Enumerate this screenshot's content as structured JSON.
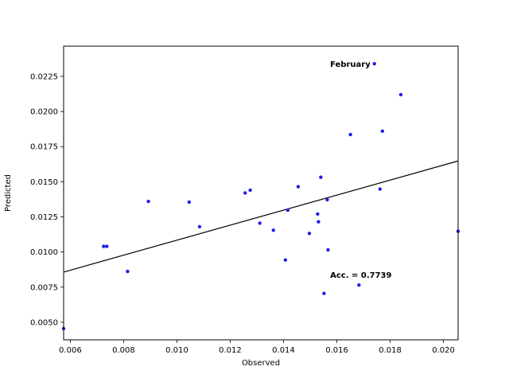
{
  "chart_data": {
    "type": "scatter",
    "title": "",
    "xlabel": "Observed",
    "ylabel": "Predicted",
    "xlim": [
      0.00575,
      0.02055
    ],
    "ylim": [
      0.00375,
      0.02465
    ],
    "x_ticks": [
      0.006,
      0.008,
      0.01,
      0.012,
      0.014,
      0.016,
      0.018,
      0.02
    ],
    "x_tick_labels": [
      "0.006",
      "0.008",
      "0.010",
      "0.012",
      "0.014",
      "0.016",
      "0.018",
      "0.020"
    ],
    "y_ticks": [
      0.005,
      0.0075,
      0.01,
      0.0125,
      0.015,
      0.0175,
      0.02,
      0.0225
    ],
    "y_tick_labels": [
      "0.0050",
      "0.0075",
      "0.0100",
      "0.0125",
      "0.0150",
      "0.0175",
      "0.0200",
      "0.0225"
    ],
    "points": [
      {
        "x": 0.00575,
        "y": 0.00455
      },
      {
        "x": 0.00725,
        "y": 0.0104
      },
      {
        "x": 0.00737,
        "y": 0.0104
      },
      {
        "x": 0.00815,
        "y": 0.00862
      },
      {
        "x": 0.00893,
        "y": 0.0136
      },
      {
        "x": 0.01046,
        "y": 0.01355
      },
      {
        "x": 0.01085,
        "y": 0.0118
      },
      {
        "x": 0.01256,
        "y": 0.0142
      },
      {
        "x": 0.01275,
        "y": 0.0144
      },
      {
        "x": 0.01311,
        "y": 0.01205
      },
      {
        "x": 0.01362,
        "y": 0.01155
      },
      {
        "x": 0.01407,
        "y": 0.00943
      },
      {
        "x": 0.01416,
        "y": 0.01298
      },
      {
        "x": 0.01455,
        "y": 0.01465
      },
      {
        "x": 0.01497,
        "y": 0.01132
      },
      {
        "x": 0.01528,
        "y": 0.0127
      },
      {
        "x": 0.01531,
        "y": 0.01215
      },
      {
        "x": 0.0154,
        "y": 0.01532
      },
      {
        "x": 0.01552,
        "y": 0.00705
      },
      {
        "x": 0.01564,
        "y": 0.01372
      },
      {
        "x": 0.01567,
        "y": 0.01015
      },
      {
        "x": 0.01651,
        "y": 0.01836
      },
      {
        "x": 0.01683,
        "y": 0.00765
      },
      {
        "x": 0.01741,
        "y": 0.0234
      },
      {
        "x": 0.01762,
        "y": 0.01448
      },
      {
        "x": 0.01771,
        "y": 0.0186
      },
      {
        "x": 0.0184,
        "y": 0.0212
      },
      {
        "x": 0.02055,
        "y": 0.01148
      }
    ],
    "fit_line": {
      "x": [
        0.00575,
        0.02055
      ],
      "y": [
        0.00857,
        0.01648
      ]
    },
    "point_color": "#1f1fe6",
    "line_color": "#000000",
    "annotations": [
      {
        "text": "February",
        "x": 0.01575,
        "y": 0.0234
      },
      {
        "text": "Acc. = 0.7739",
        "x": 0.01575,
        "y": 0.0084
      }
    ]
  }
}
